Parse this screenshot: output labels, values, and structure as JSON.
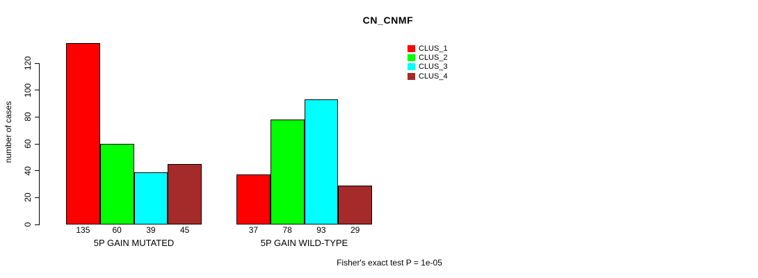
{
  "chart_data": {
    "type": "bar",
    "title": "CN_CNMF",
    "xlabel": "",
    "ylabel": "number of cases",
    "ylim": [
      0,
      135
    ],
    "yticks": [
      0,
      20,
      40,
      60,
      80,
      100,
      120
    ],
    "grid": false,
    "background": "#ffffff",
    "axis_color": "#000000",
    "categories": [
      "5P GAIN MUTATED",
      "5P GAIN WILD-TYPE"
    ],
    "series": [
      {
        "name": "CLUS_1",
        "color": "#ff0000",
        "values": [
          135,
          37
        ]
      },
      {
        "name": "CLUS_2",
        "color": "#00ff00",
        "values": [
          60,
          78
        ]
      },
      {
        "name": "CLUS_3",
        "color": "#00ffff",
        "values": [
          39,
          93
        ]
      },
      {
        "name": "CLUS_4",
        "color": "#a52a2a",
        "values": [
          45,
          29
        ]
      }
    ],
    "bar_value_labels": [
      [
        135,
        60,
        39,
        45
      ],
      [
        37,
        78,
        93,
        29
      ]
    ],
    "show_bar_value_labels": true,
    "legend_entries": [
      "CLUS_1",
      "CLUS_2",
      "CLUS_3",
      "CLUS_4"
    ],
    "legend_position": "top-right",
    "annotation": "Fisher's exact test P = 1e-05"
  }
}
